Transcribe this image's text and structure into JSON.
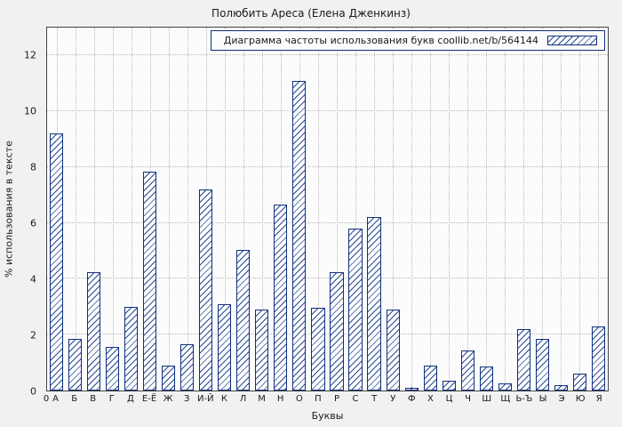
{
  "figure": {
    "background": "#f1f1f1",
    "plot_background": "#fcfcfc",
    "bar_border_color": "#10307c",
    "hatch_color": "#2a4a96",
    "axis_color": "#444444",
    "grid_color": "#b9b9b9"
  },
  "chart_data": {
    "type": "bar",
    "title": "Полюбить Ареса (Елена Дженкинз)",
    "legend": "Диаграмма частоты использования букв coollib.net/b/564144",
    "xlabel": "Буквы",
    "ylabel": "% использования в тексте",
    "origin_label": "0",
    "ylim": [
      0,
      13
    ],
    "yticks": [
      0,
      2,
      4,
      6,
      8,
      10,
      12
    ],
    "grid": true,
    "legend_position": "top-right",
    "categories": [
      "А",
      "Б",
      "В",
      "Г",
      "Д",
      "Е-Ё",
      "Ж",
      "З",
      "И-Й",
      "К",
      "Л",
      "М",
      "Н",
      "О",
      "П",
      "Р",
      "С",
      "Т",
      "У",
      "Ф",
      "Х",
      "Ц",
      "Ч",
      "Ш",
      "Щ",
      "Ь-Ъ",
      "Ы",
      "Э",
      "Ю",
      "Я"
    ],
    "values": [
      9.2,
      1.85,
      4.25,
      1.55,
      3.0,
      7.85,
      0.9,
      1.65,
      7.2,
      3.1,
      5.05,
      2.9,
      6.65,
      11.1,
      2.95,
      4.25,
      5.8,
      6.2,
      2.9,
      0.1,
      0.9,
      0.35,
      1.45,
      0.85,
      0.25,
      2.2,
      1.85,
      0.2,
      0.6,
      2.3
    ]
  }
}
